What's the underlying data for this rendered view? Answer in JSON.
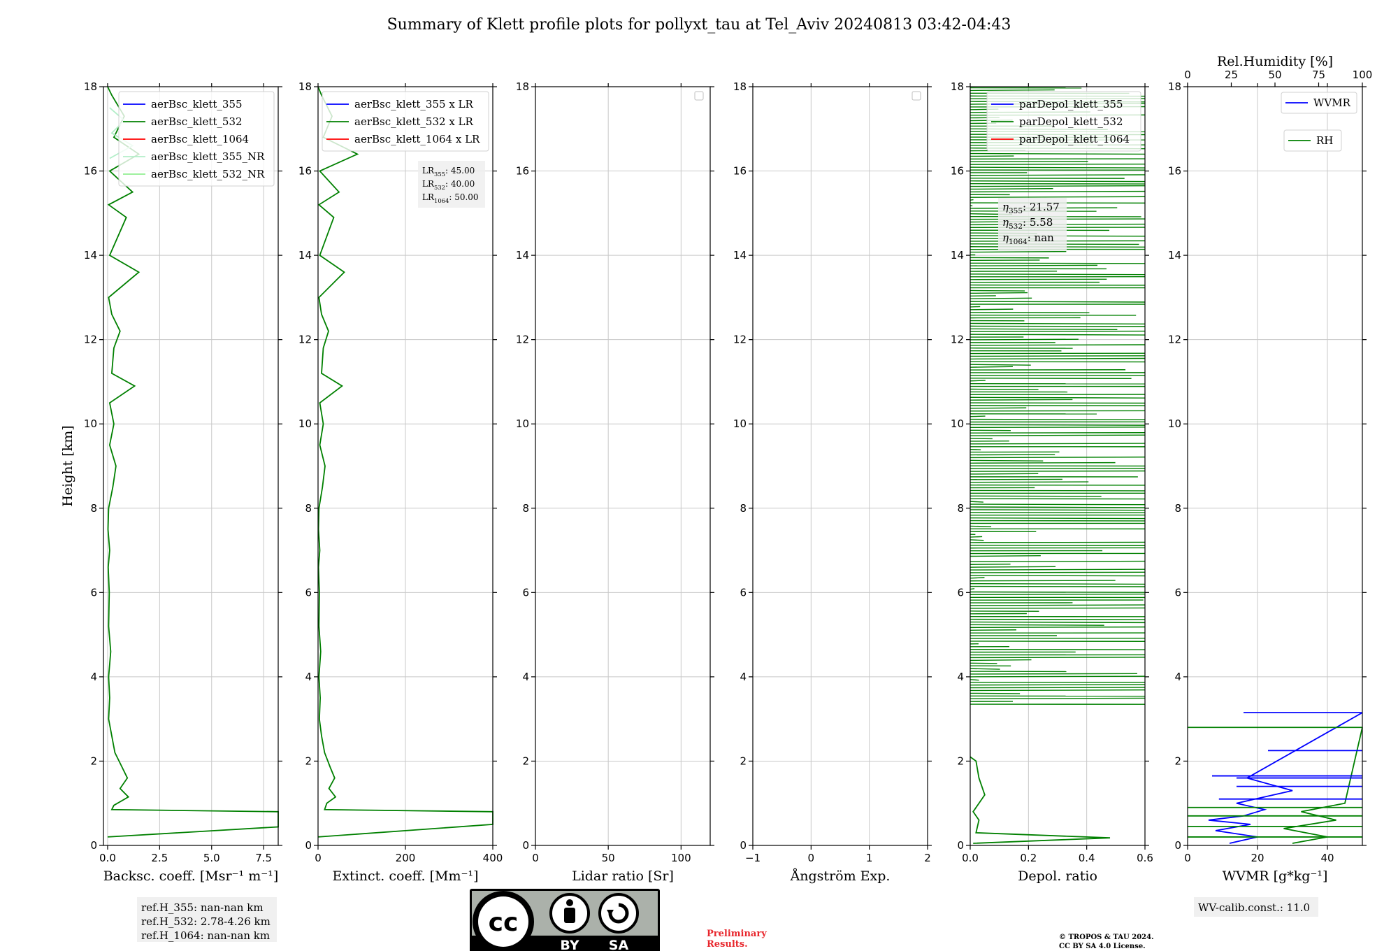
{
  "title": "Summary of Klett profile plots for pollyxt_tau at Tel_Aviv 20240813 03:42-04:43",
  "colors": {
    "c355": "#0000ff",
    "c532": "#008000",
    "c1064": "#ff0000",
    "c355nr": "#b2eec8",
    "c532nr": "#90ee90",
    "wvmr": "#0000ff",
    "rh": "#008000"
  },
  "chart_data": [
    {
      "type": "line",
      "xlabel": "Backsc. coeff. [Msr⁻¹ m⁻¹]",
      "ylabel": "Height [km]",
      "xlim": [
        -0.2,
        8.2
      ],
      "ylim": [
        0,
        18
      ],
      "xticks": [
        "0.0",
        "2.5",
        "5.0",
        "7.5"
      ],
      "xtick_values": [
        0,
        2.5,
        5.0,
        7.5
      ],
      "yticks": [
        "0",
        "2",
        "4",
        "6",
        "8",
        "10",
        "12",
        "14",
        "16",
        "18"
      ],
      "grid": true,
      "legend_position": "top-right",
      "series": [
        {
          "name": "aerBsc_klett_355",
          "color": "#0000ff",
          "points": []
        },
        {
          "name": "aerBsc_klett_532",
          "color": "#008000",
          "points": [
            [
              0,
              0.2
            ],
            [
              8.2,
              0.44
            ],
            [
              8.2,
              0.8
            ],
            [
              0.2,
              0.85
            ],
            [
              0.3,
              0.95
            ],
            [
              1.0,
              1.15
            ],
            [
              0.6,
              1.35
            ],
            [
              0.95,
              1.6
            ],
            [
              0.7,
              1.85
            ],
            [
              0.35,
              2.2
            ],
            [
              0.2,
              2.6
            ],
            [
              0.05,
              3.0
            ],
            [
              0.1,
              3.5
            ],
            [
              0.05,
              4.0
            ],
            [
              0.15,
              4.6
            ],
            [
              0.05,
              5.2
            ],
            [
              0.08,
              6.0
            ],
            [
              0.03,
              6.6
            ],
            [
              0.1,
              7.0
            ],
            [
              0.02,
              7.5
            ],
            [
              0.05,
              8.0
            ],
            [
              0.25,
              8.5
            ],
            [
              0.4,
              9.0
            ],
            [
              0.1,
              9.5
            ],
            [
              0.3,
              10.0
            ],
            [
              0.1,
              10.5
            ],
            [
              1.3,
              10.9
            ],
            [
              0.2,
              11.2
            ],
            [
              0.3,
              11.8
            ],
            [
              0.6,
              12.2
            ],
            [
              0.2,
              12.6
            ],
            [
              0.05,
              13.0
            ],
            [
              1.5,
              13.6
            ],
            [
              0.1,
              14.0
            ],
            [
              0.9,
              14.9
            ],
            [
              0.05,
              15.2
            ],
            [
              1.2,
              15.5
            ],
            [
              0.1,
              16.0
            ],
            [
              1.5,
              16.4
            ],
            [
              0.3,
              16.8
            ],
            [
              0.8,
              17.3
            ],
            [
              0.2,
              17.8
            ],
            [
              0,
              18
            ]
          ]
        },
        {
          "name": "aerBsc_klett_1064",
          "color": "#ff0000",
          "points": []
        },
        {
          "name": "aerBsc_klett_355_NR",
          "color": "#b2eec8",
          "points": [
            [
              0.1,
              16.3
            ],
            [
              1.2,
              16.6
            ],
            [
              0.2,
              16.9
            ],
            [
              0.8,
              17.2
            ],
            [
              0.1,
              17.5
            ]
          ]
        },
        {
          "name": "aerBsc_klett_532_NR",
          "color": "#90ee90",
          "points": []
        }
      ],
      "annotation_lines": [
        "ref.H_355: nan-nan km",
        "ref.H_532: 2.78-4.26 km",
        "ref.H_1064: nan-nan km"
      ]
    },
    {
      "type": "line",
      "xlabel": "Extinct. coeff. [Mm⁻¹]",
      "xlim": [
        0,
        400
      ],
      "ylim": [
        0,
        18
      ],
      "xticks": [
        "0",
        "200",
        "400"
      ],
      "xtick_values": [
        0,
        200,
        400
      ],
      "yticks": [
        "0",
        "2",
        "4",
        "6",
        "8",
        "10",
        "12",
        "14",
        "16",
        "18"
      ],
      "grid": true,
      "legend_position": "top-right",
      "series": [
        {
          "name": "aerBsc_klett_355 x LR",
          "color": "#0000ff",
          "points": []
        },
        {
          "name": "aerBsc_klett_532 x LR",
          "color": "#008000",
          "points": [
            [
              0,
              0.2
            ],
            [
              400,
              0.5
            ],
            [
              400,
              0.8
            ],
            [
              15,
              0.85
            ],
            [
              20,
              1.0
            ],
            [
              40,
              1.15
            ],
            [
              25,
              1.35
            ],
            [
              38,
              1.6
            ],
            [
              28,
              1.85
            ],
            [
              15,
              2.2
            ],
            [
              8,
              2.6
            ],
            [
              3,
              3.0
            ],
            [
              5,
              3.5
            ],
            [
              2,
              4.0
            ],
            [
              6,
              4.6
            ],
            [
              2,
              5.2
            ],
            [
              3,
              6.0
            ],
            [
              1,
              6.6
            ],
            [
              4,
              7.0
            ],
            [
              1,
              7.5
            ],
            [
              2,
              8.0
            ],
            [
              10,
              8.5
            ],
            [
              16,
              9.0
            ],
            [
              4,
              9.5
            ],
            [
              12,
              10.0
            ],
            [
              4,
              10.5
            ],
            [
              55,
              10.9
            ],
            [
              8,
              11.2
            ],
            [
              12,
              11.8
            ],
            [
              24,
              12.2
            ],
            [
              8,
              12.6
            ],
            [
              2,
              13.0
            ],
            [
              60,
              13.6
            ],
            [
              4,
              14.0
            ],
            [
              36,
              14.9
            ],
            [
              2,
              15.2
            ],
            [
              48,
              15.5
            ],
            [
              4,
              16.0
            ],
            [
              90,
              16.4
            ],
            [
              12,
              16.8
            ],
            [
              32,
              17.3
            ],
            [
              8,
              17.8
            ],
            [
              0,
              18
            ]
          ]
        },
        {
          "name": "aerBsc_klett_1064 x LR",
          "color": "#ff0000",
          "points": []
        }
      ],
      "annotation_lines": [
        {
          "label": "LR",
          "sub": "355",
          "value": ": 45.00"
        },
        {
          "label": "LR",
          "sub": "532",
          "value": ": 40.00"
        },
        {
          "label": "LR",
          "sub": "1064",
          "value": ": 50.00"
        }
      ]
    },
    {
      "type": "line",
      "xlabel": "Lidar ratio [Sr]",
      "xlim": [
        0,
        120
      ],
      "ylim": [
        0,
        18
      ],
      "xticks": [
        "0",
        "50",
        "100"
      ],
      "xtick_values": [
        0,
        50,
        100
      ],
      "yticks": [
        "0",
        "2",
        "4",
        "6",
        "8",
        "10",
        "12",
        "14",
        "16",
        "18"
      ],
      "grid": true,
      "legend_position": "top-right",
      "series": []
    },
    {
      "type": "line",
      "xlabel": "Ångström Exp.",
      "xlim": [
        -1,
        2
      ],
      "ylim": [
        0,
        18
      ],
      "xticks": [
        "−1",
        "0",
        "1",
        "2"
      ],
      "xtick_values": [
        -1,
        0,
        1,
        2
      ],
      "yticks": [
        "0",
        "2",
        "4",
        "6",
        "8",
        "10",
        "12",
        "14",
        "16",
        "18"
      ],
      "grid": true,
      "legend_position": "top-right",
      "series": []
    },
    {
      "type": "line",
      "xlabel": "Depol. ratio",
      "xlim": [
        0,
        0.6
      ],
      "ylim": [
        0,
        18
      ],
      "xticks": [
        "0.0",
        "0.2",
        "0.4",
        "0.6"
      ],
      "xtick_values": [
        0,
        0.2,
        0.4,
        0.6
      ],
      "yticks": [
        "0",
        "2",
        "4",
        "6",
        "8",
        "10",
        "12",
        "14",
        "16",
        "18"
      ],
      "grid": true,
      "legend_position": "top-right",
      "series": [
        {
          "name": "parDepol_klett_355",
          "color": "#0000ff",
          "points": []
        },
        {
          "name": "parDepol_klett_532",
          "color": "#008000",
          "points": [
            [
              0.01,
              0.05
            ],
            [
              0.48,
              0.18
            ],
            [
              0.02,
              0.3
            ],
            [
              0.03,
              0.6
            ],
            [
              0.01,
              0.8
            ],
            [
              0.05,
              1.2
            ],
            [
              0.03,
              1.6
            ],
            [
              0.02,
              2.0
            ],
            [
              0.0,
              2.1
            ]
          ]
        },
        {
          "name": "parDepol_klett_1064",
          "color": "#ff0000",
          "points": []
        }
      ],
      "noise_ranges": [
        [
          3.35,
          18.0
        ]
      ],
      "annotation_lines": [
        {
          "label": "η",
          "sub": "355",
          "value": ": 21.57"
        },
        {
          "label": "η",
          "sub": "532",
          "value": ": 5.58"
        },
        {
          "label": "η",
          "sub": "1064",
          "value": ": nan"
        }
      ]
    },
    {
      "type": "line",
      "xlabel": "WVMR [g*kg⁻¹]",
      "x2label": "Rel.Humidity [%]",
      "xlim": [
        0,
        50
      ],
      "x2lim": [
        0,
        100
      ],
      "ylim": [
        0,
        18
      ],
      "xticks": [
        "0",
        "20",
        "40"
      ],
      "xtick_values": [
        0,
        20,
        40
      ],
      "x2ticks": [
        "0",
        "25",
        "50",
        "75",
        "100"
      ],
      "x2tick_values": [
        0,
        25,
        50,
        75,
        100
      ],
      "yticks": [
        "0",
        "2",
        "4",
        "6",
        "8",
        "10",
        "12",
        "14",
        "16",
        "18"
      ],
      "grid": true,
      "legend_position": "top-right",
      "series": [
        {
          "name": "WVMR",
          "color": "#0000ff",
          "points": [
            [
              12,
              0.05
            ],
            [
              20,
              0.2
            ],
            [
              8,
              0.35
            ],
            [
              18,
              0.5
            ],
            [
              6,
              0.6
            ],
            [
              16,
              0.7
            ],
            [
              22,
              0.85
            ],
            [
              14,
              1.0
            ],
            [
              30,
              1.3
            ],
            [
              17,
              1.6
            ],
            [
              50,
              3.15
            ]
          ]
        },
        {
          "name": "RH",
          "color": "#008000",
          "points": [
            [
              60,
              0.05
            ],
            [
              80,
              0.2
            ],
            [
              55,
              0.4
            ],
            [
              85,
              0.6
            ],
            [
              65,
              0.8
            ],
            [
              90,
              1.0
            ],
            [
              100,
              2.8
            ]
          ]
        }
      ],
      "annotation_lines": [
        "WV-calib.const.: 11.0"
      ]
    }
  ],
  "footer": {
    "license_badge": {
      "cc": "cc",
      "by": "BY",
      "sa": "SA"
    },
    "preliminary": [
      "Preliminary",
      "Results."
    ],
    "copyright": [
      "© TROPOS & TAU 2024.",
      "CC BY SA 4.0 License."
    ]
  }
}
